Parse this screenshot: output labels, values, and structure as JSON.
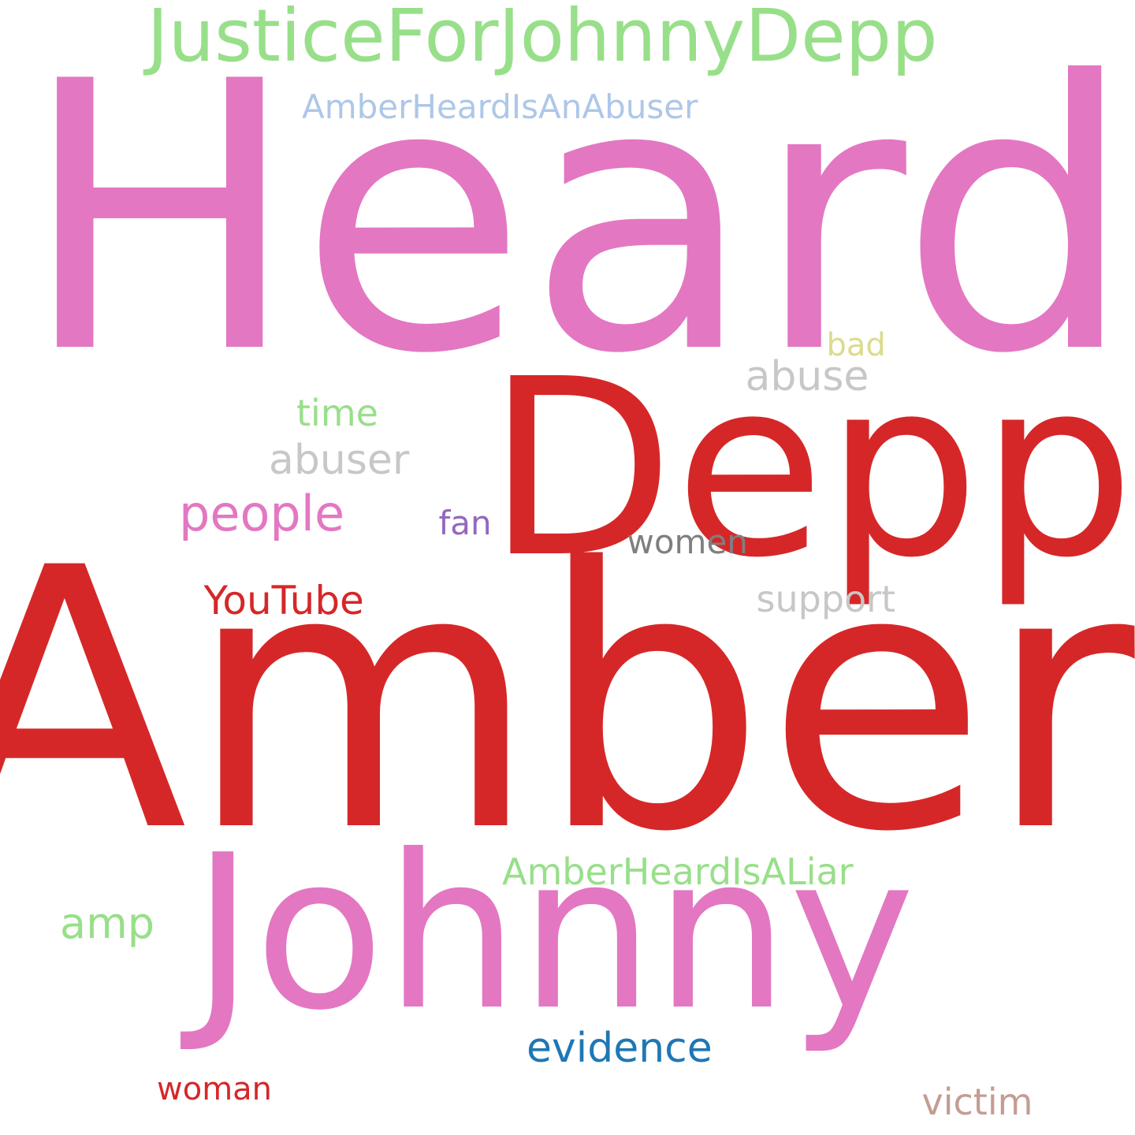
{
  "words": [
    {
      "text": "Heard",
      "color": "#e377c2"
    },
    {
      "text": "Amber",
      "color": "#d62728"
    },
    {
      "text": "Depp",
      "color": "#d62728"
    },
    {
      "text": "Johnny",
      "color": "#e377c2"
    },
    {
      "text": "JusticeForJohnnyDepp",
      "color": "#98df8a"
    },
    {
      "text": "AmberHeardIsAnAbuser",
      "color": "#aec7e8"
    },
    {
      "text": "bad",
      "color": "#dbdb8d"
    },
    {
      "text": "abuse",
      "color": "#c7c7c7"
    },
    {
      "text": "time",
      "color": "#98df8a"
    },
    {
      "text": "abuser",
      "color": "#c7c7c7"
    },
    {
      "text": "people",
      "color": "#e377c2"
    },
    {
      "text": "fan",
      "color": "#9467bd"
    },
    {
      "text": "women",
      "color": "#7f7f7f"
    },
    {
      "text": "YouTube",
      "color": "#d62728"
    },
    {
      "text": "support",
      "color": "#c7c7c7"
    },
    {
      "text": "AmberHeardIsALiar",
      "color": "#98df8a"
    },
    {
      "text": "amp",
      "color": "#98df8a"
    },
    {
      "text": "evidence",
      "color": "#1f77b4"
    },
    {
      "text": "woman",
      "color": "#d62728"
    },
    {
      "text": "victim",
      "color": "#c49c94"
    }
  ]
}
